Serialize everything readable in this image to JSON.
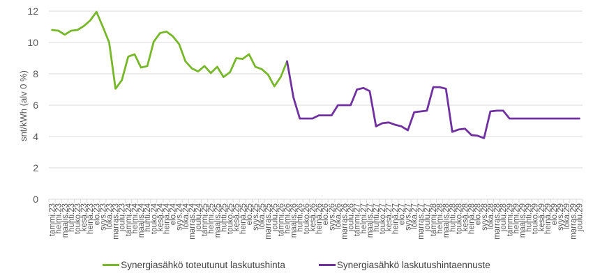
{
  "chart_data": {
    "type": "line",
    "title": "",
    "xlabel": "",
    "ylabel": "snt/kWh (alv 0 %)",
    "ylim": [
      0,
      12
    ],
    "yticks": [
      0,
      2,
      4,
      6,
      8,
      10,
      12
    ],
    "grid": true,
    "legend_position": "bottom",
    "categories": [
      "tammi.23",
      "helmi.23",
      "maalis.23",
      "huhti.23",
      "touko.23",
      "kesä.23",
      "heinä.23",
      "elo.23",
      "syys.23",
      "loka.23",
      "marras.23",
      "joulu.23",
      "tammi.24",
      "helmi.24",
      "maalis.24",
      "huhti.24",
      "touko.24",
      "kesä.24",
      "heinä.24",
      "elo.24",
      "syys.24",
      "loka.24",
      "marras.24",
      "joulu.24",
      "tammi.25",
      "helmi.25",
      "maalis.25",
      "huhti.25",
      "touko.25",
      "kesä.25",
      "heinä.25",
      "elo.25",
      "syys.25",
      "loka.25",
      "marras.25",
      "joulu.25",
      "tammi.26",
      "helmi.26",
      "maalis.26",
      "huhti.26",
      "touko.26",
      "kesä.26",
      "heinä.26",
      "elo.26",
      "syys.26",
      "loka.26",
      "marras.26",
      "joulu.26",
      "tammi.27",
      "helmi.27",
      "maalis.27",
      "huhti.27",
      "touko.27",
      "kesä.27",
      "heinä.27",
      "elo.27",
      "syys.27",
      "loka.27",
      "marras.27",
      "joulu.27",
      "tammi.28",
      "helmi.28",
      "maalis.28",
      "huhti.28",
      "touko.28",
      "kesä.28",
      "heinä.28",
      "elo.28",
      "syys.28",
      "loka.28",
      "marras.28",
      "joulu.28",
      "tammi.29",
      "helmi.29",
      "maalis.29",
      "huhti.29",
      "touko.29",
      "kesä.29",
      "heinä.29",
      "elo.29",
      "syys.29",
      "loka.29",
      "marras.29",
      "joulu.29"
    ],
    "series": [
      {
        "name": "Synergiasähkö toteutunut laskutushinta",
        "color": "#77b82a",
        "values": [
          10.8,
          10.75,
          10.5,
          10.75,
          10.8,
          11.05,
          11.4,
          11.95,
          11.0,
          10.0,
          7.05,
          7.6,
          9.1,
          9.25,
          8.4,
          8.5,
          10.05,
          10.6,
          10.7,
          10.4,
          9.9,
          8.8,
          8.35,
          8.15,
          8.5,
          8.05,
          8.45,
          7.8,
          8.1,
          9.0,
          8.95,
          9.25,
          8.45,
          8.3,
          7.95,
          7.2,
          7.8,
          8.8,
          null,
          null,
          null,
          null,
          null,
          null,
          null,
          null,
          null,
          null,
          null,
          null,
          null,
          null,
          null,
          null,
          null,
          null,
          null,
          null,
          null,
          null,
          null,
          null,
          null,
          null,
          null,
          null,
          null,
          null,
          null,
          null,
          null,
          null,
          null,
          null,
          null,
          null,
          null,
          null,
          null,
          null,
          null,
          null,
          null,
          null
        ]
      },
      {
        "name": "Synergiasähkö laskutushintaennuste",
        "color": "#7030a0",
        "values": [
          null,
          null,
          null,
          null,
          null,
          null,
          null,
          null,
          null,
          null,
          null,
          null,
          null,
          null,
          null,
          null,
          null,
          null,
          null,
          null,
          null,
          null,
          null,
          null,
          null,
          null,
          null,
          null,
          null,
          null,
          null,
          null,
          null,
          null,
          null,
          null,
          null,
          8.8,
          6.5,
          5.15,
          5.15,
          5.15,
          5.35,
          5.35,
          5.35,
          6.0,
          6.0,
          6.0,
          7.0,
          7.1,
          6.9,
          4.65,
          4.85,
          4.9,
          4.75,
          4.65,
          4.4,
          5.55,
          5.6,
          5.65,
          7.15,
          7.15,
          7.05,
          4.3,
          4.45,
          4.5,
          4.1,
          4.05,
          3.9,
          5.6,
          5.65,
          5.65,
          5.15,
          5.15,
          5.15,
          5.15,
          5.15,
          5.15,
          5.15,
          5.15,
          5.15,
          5.15,
          5.15,
          5.15
        ]
      }
    ]
  },
  "legend": {
    "items": [
      {
        "label": "Synergiasähkö toteutunut laskutushinta",
        "color": "#77b82a"
      },
      {
        "label": "Synergiasähkö laskutushintaennuste",
        "color": "#7030a0"
      }
    ]
  }
}
